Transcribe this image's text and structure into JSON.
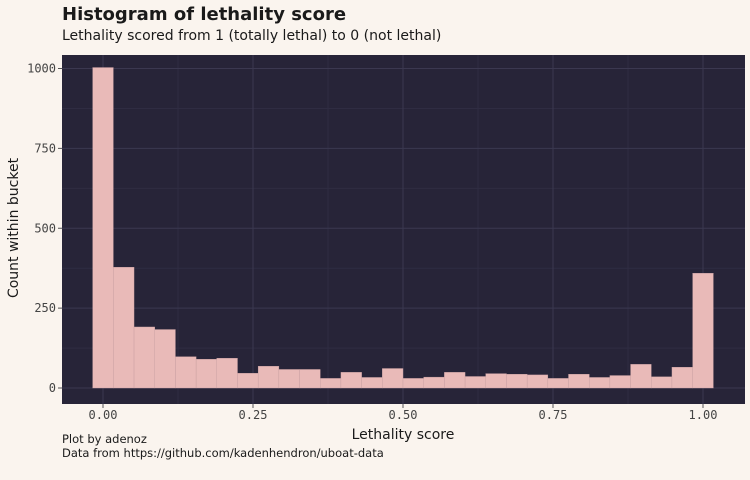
{
  "chart_data": {
    "type": "bar",
    "title": "Histogram of lethality score",
    "subtitle": "Lethality scored from 1 (totally lethal) to 0 (not lethal)",
    "xlabel": "Lethality score",
    "ylabel": "Count within bucket",
    "xlim": [
      -0.0517,
      1.0517
    ],
    "ylim": [
      -50,
      1060
    ],
    "xticks": [
      0,
      0.25,
      0.5,
      0.75,
      1
    ],
    "xtick_labels": [
      "0.00",
      "0.25",
      "0.50",
      "0.75",
      "1.00"
    ],
    "yticks": [
      0,
      250,
      500,
      750,
      1000
    ],
    "ytick_labels": [
      "0",
      "250",
      "500",
      "750",
      "1000"
    ],
    "bins": 30,
    "values": [
      1003,
      378,
      191,
      183,
      98,
      90,
      93,
      46,
      68,
      58,
      58,
      30,
      49,
      33,
      61,
      30,
      34,
      49,
      36,
      45,
      43,
      41,
      30,
      43,
      33,
      39,
      74,
      35,
      65,
      359
    ],
    "grid": true,
    "colors": {
      "bar": "#e9bab8",
      "panel": "#272438",
      "grid_major": "#3b3850",
      "grid_minor": "#2f2c42",
      "background": "#faf4ee"
    }
  },
  "captions": [
    "Plot by adenoz",
    "Data from https://github.com/kadenhendron/uboat-data"
  ]
}
